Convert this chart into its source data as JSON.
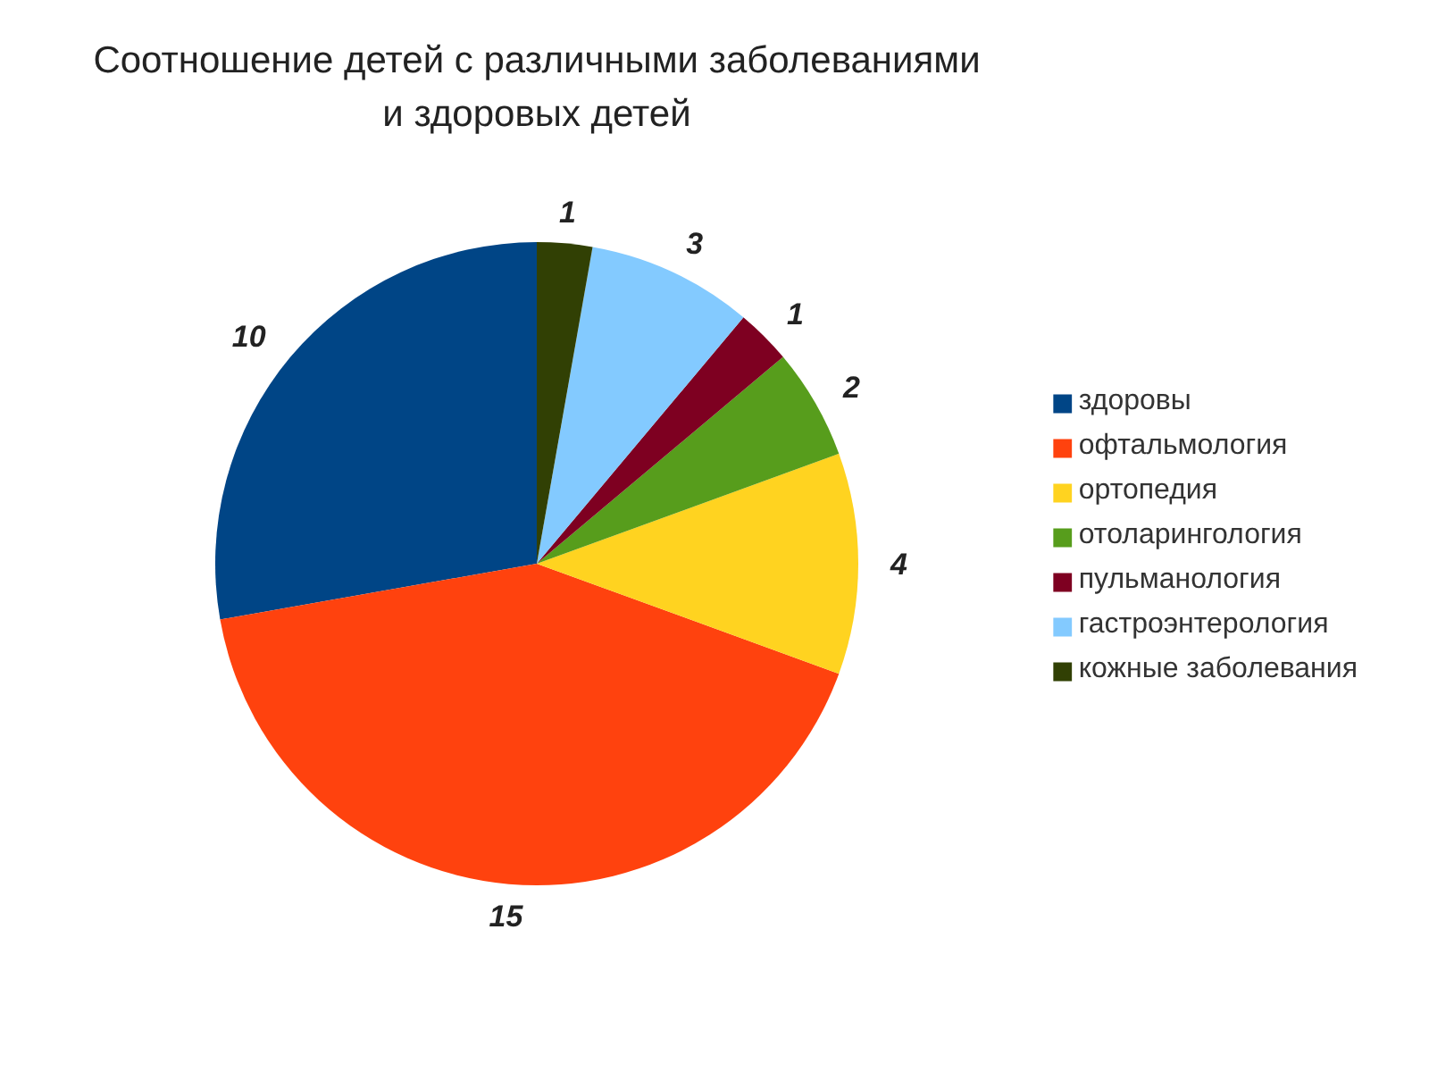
{
  "chart_data": {
    "type": "pie",
    "title": "Соотношение детей с различными заболеваниями и здоровых детей",
    "categories": [
      "здоровы",
      "офтальмология",
      "ортопедия",
      "отоларингология",
      "пульманология",
      "гастроэнтерология",
      "кожные заболевания"
    ],
    "values": [
      10,
      15,
      4,
      2,
      1,
      3,
      1
    ],
    "colors": [
      "#004586",
      "#ff420e",
      "#ffd320",
      "#579d1c",
      "#7e0021",
      "#83caff",
      "#314004"
    ],
    "data_labels": true,
    "legend": "right"
  }
}
